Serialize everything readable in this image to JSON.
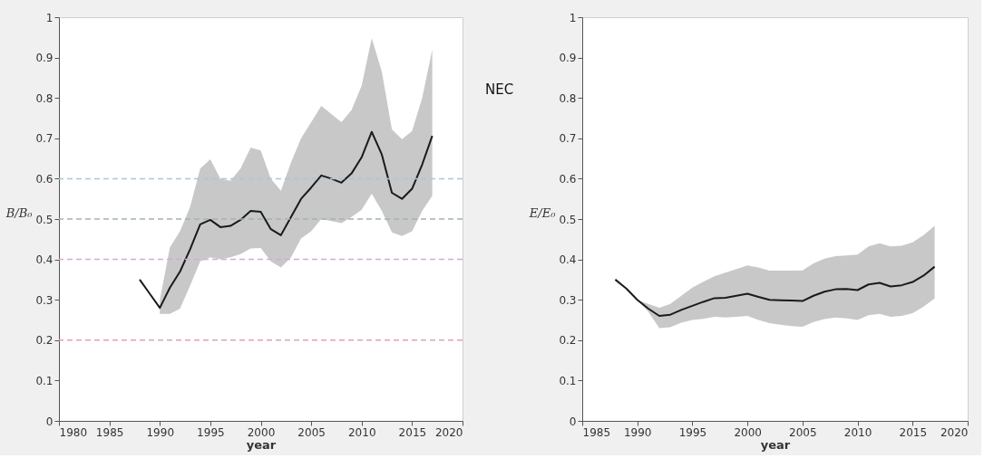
{
  "chart_data": [
    {
      "type": "line",
      "xlabel": "year",
      "ylabel": "B/B₀",
      "x": [
        1988,
        1989,
        1990,
        1991,
        1992,
        1993,
        1994,
        1995,
        1996,
        1997,
        1998,
        1999,
        2000,
        2001,
        2002,
        2003,
        2004,
        2005,
        2006,
        2007,
        2008,
        2009,
        2010,
        2011,
        2012,
        2013,
        2014,
        2015,
        2016,
        2017
      ],
      "series": [
        {
          "color": "#1a1a1a",
          "values": [
            0.35,
            0.315,
            0.28,
            0.33,
            0.37,
            0.425,
            0.487,
            0.498,
            0.48,
            0.483,
            0.498,
            0.52,
            0.518,
            0.475,
            0.46,
            0.505,
            0.55,
            0.578,
            0.608,
            0.6,
            0.59,
            0.613,
            0.653,
            0.716,
            0.66,
            0.565,
            0.55,
            0.575,
            0.635,
            0.706
          ],
          "lower": [
            null,
            null,
            0.265,
            0.265,
            0.278,
            0.335,
            0.395,
            0.405,
            0.4,
            0.405,
            0.413,
            0.427,
            0.428,
            0.395,
            0.38,
            0.405,
            0.452,
            0.47,
            0.5,
            0.495,
            0.49,
            0.505,
            0.523,
            0.563,
            0.52,
            0.467,
            0.458,
            0.47,
            0.52,
            0.558
          ],
          "upper": [
            null,
            null,
            0.3,
            0.43,
            0.47,
            0.53,
            0.625,
            0.648,
            0.6,
            0.595,
            0.625,
            0.677,
            0.67,
            0.6,
            0.57,
            0.64,
            0.7,
            0.74,
            0.78,
            0.76,
            0.74,
            0.77,
            0.83,
            0.948,
            0.865,
            0.722,
            0.698,
            0.718,
            0.8,
            0.92
          ]
        }
      ],
      "xlim": [
        1980,
        2020
      ],
      "xticks": [
        1980,
        1985,
        1990,
        1995,
        2000,
        2005,
        2010,
        2015,
        2020
      ],
      "ylim": [
        0,
        1
      ],
      "yticks": [
        0,
        0.1,
        0.2,
        0.3,
        0.4,
        0.5,
        0.6,
        0.7,
        0.8,
        0.9,
        1
      ],
      "ref_lines": [
        {
          "axis": "y",
          "value": 0.6,
          "color": "#a8c8d8",
          "line_style": "dashed"
        },
        {
          "axis": "y",
          "value": 0.5,
          "color": "#a0b4ac",
          "line_style": "dashed"
        },
        {
          "axis": "y",
          "value": 0.4,
          "color": "#d8a8d8",
          "line_style": "dashed"
        },
        {
          "axis": "y",
          "value": 0.2,
          "color": "#e0a0bc",
          "line_style": "dashed"
        }
      ],
      "grid": false,
      "line_style": "solid",
      "marker": "none"
    },
    {
      "type": "line",
      "xlabel": "year",
      "ylabel": "E/E₀",
      "annotations": [
        "NEC"
      ],
      "x": [
        1988,
        1989,
        1990,
        1991,
        1992,
        1993,
        1994,
        1995,
        1996,
        1997,
        1998,
        1999,
        2000,
        2001,
        2002,
        2003,
        2004,
        2005,
        2006,
        2007,
        2008,
        2009,
        2010,
        2011,
        2012,
        2013,
        2014,
        2015,
        2016,
        2017
      ],
      "series": [
        {
          "color": "#1a1a1a",
          "values": [
            0.35,
            0.328,
            0.3,
            0.278,
            0.26,
            0.263,
            0.275,
            0.285,
            0.295,
            0.304,
            0.305,
            0.31,
            0.315,
            0.307,
            0.3,
            0.299,
            0.298,
            0.297,
            0.31,
            0.32,
            0.326,
            0.327,
            0.324,
            0.338,
            0.342,
            0.333,
            0.336,
            0.344,
            0.36,
            0.382
          ],
          "lower": [
            null,
            null,
            0.3,
            0.27,
            0.23,
            0.232,
            0.243,
            0.25,
            0.253,
            0.258,
            0.256,
            0.258,
            0.26,
            0.25,
            0.242,
            0.238,
            0.235,
            0.233,
            0.245,
            0.252,
            0.256,
            0.254,
            0.25,
            0.262,
            0.265,
            0.258,
            0.26,
            0.267,
            0.283,
            0.303
          ],
          "upper": [
            null,
            null,
            0.3,
            0.29,
            0.28,
            0.29,
            0.31,
            0.33,
            0.345,
            0.358,
            0.367,
            0.376,
            0.385,
            0.38,
            0.372,
            0.372,
            0.372,
            0.373,
            0.39,
            0.402,
            0.408,
            0.41,
            0.412,
            0.432,
            0.44,
            0.432,
            0.434,
            0.442,
            0.46,
            0.483
          ]
        }
      ],
      "xlim": [
        1985,
        2020
      ],
      "xticks": [
        1985,
        1990,
        1995,
        2000,
        2005,
        2010,
        2015,
        2020
      ],
      "ylim": [
        0,
        1
      ],
      "yticks": [
        0,
        0.1,
        0.2,
        0.3,
        0.4,
        0.5,
        0.6,
        0.7,
        0.8,
        0.9,
        1
      ],
      "grid": false,
      "line_style": "solid",
      "marker": "none"
    }
  ]
}
